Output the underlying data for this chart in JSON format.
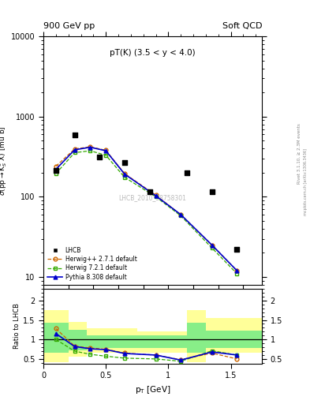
{
  "title_left": "900 GeV pp",
  "title_right": "Soft QCD",
  "annotation": "pT(K) (3.5 < y < 4.0)",
  "watermark": "LHCB_2010_S8758301",
  "rivet_label": "Rivet 3.1.10, ≥ 2.3M events",
  "mcplots_label": "mcplots.cern.ch [arXiv:1306.3436]",
  "ylabel_main": "σ(pprightarrowK°_S X) [mu b]",
  "ylabel_ratio": "Ratio to LHCB",
  "xlabel": "p_T [GeV]",
  "lhcb_x": [
    0.1,
    0.25,
    0.45,
    0.65,
    0.85,
    1.15,
    1.35,
    1.55
  ],
  "lhcb_y": [
    215,
    590,
    310,
    265,
    115,
    200,
    115,
    22
  ],
  "herwig_x": [
    0.1,
    0.25,
    0.375,
    0.5,
    0.65,
    0.9,
    1.1,
    1.35,
    1.55
  ],
  "herwig_y": [
    240,
    395,
    420,
    380,
    195,
    105,
    60,
    25,
    12
  ],
  "herwig7_x": [
    0.1,
    0.25,
    0.375,
    0.5,
    0.65,
    0.9,
    1.1,
    1.35,
    1.55
  ],
  "herwig7_y": [
    195,
    355,
    375,
    330,
    175,
    100,
    58,
    23,
    11
  ],
  "pythia_x": [
    0.1,
    0.25,
    0.375,
    0.5,
    0.65,
    0.9,
    1.1,
    1.35,
    1.55
  ],
  "pythia_y": [
    220,
    385,
    415,
    375,
    192,
    103,
    60,
    25,
    12
  ],
  "ratio_herwig_x": [
    0.1,
    0.25,
    0.375,
    0.5,
    0.65,
    0.9,
    1.1,
    1.35,
    1.55
  ],
  "ratio_herwig_y": [
    1.28,
    0.83,
    0.78,
    0.75,
    0.65,
    0.6,
    0.48,
    0.65,
    0.5
  ],
  "ratio_herwig7_x": [
    0.1,
    0.25,
    0.375,
    0.5,
    0.65,
    0.9,
    1.1,
    1.35,
    1.55
  ],
  "ratio_herwig7_y": [
    1.0,
    0.7,
    0.62,
    0.57,
    0.52,
    0.5,
    0.44,
    0.71,
    0.6
  ],
  "ratio_pythia_x": [
    0.1,
    0.25,
    0.375,
    0.5,
    0.65,
    0.9,
    1.1,
    1.35,
    1.55
  ],
  "ratio_pythia_y": [
    1.15,
    0.82,
    0.76,
    0.74,
    0.64,
    0.6,
    0.47,
    0.68,
    0.6
  ],
  "color_herwig": "#cc6600",
  "color_herwig7": "#33aa00",
  "color_pythia": "#0000cc",
  "color_lhcb": "#000000",
  "color_yellow": "#ffff99",
  "color_green": "#88ee88",
  "ylim_main": [
    8,
    5000
  ],
  "ylim_ratio": [
    0.38,
    2.3
  ],
  "xlim": [
    0.0,
    1.75
  ]
}
